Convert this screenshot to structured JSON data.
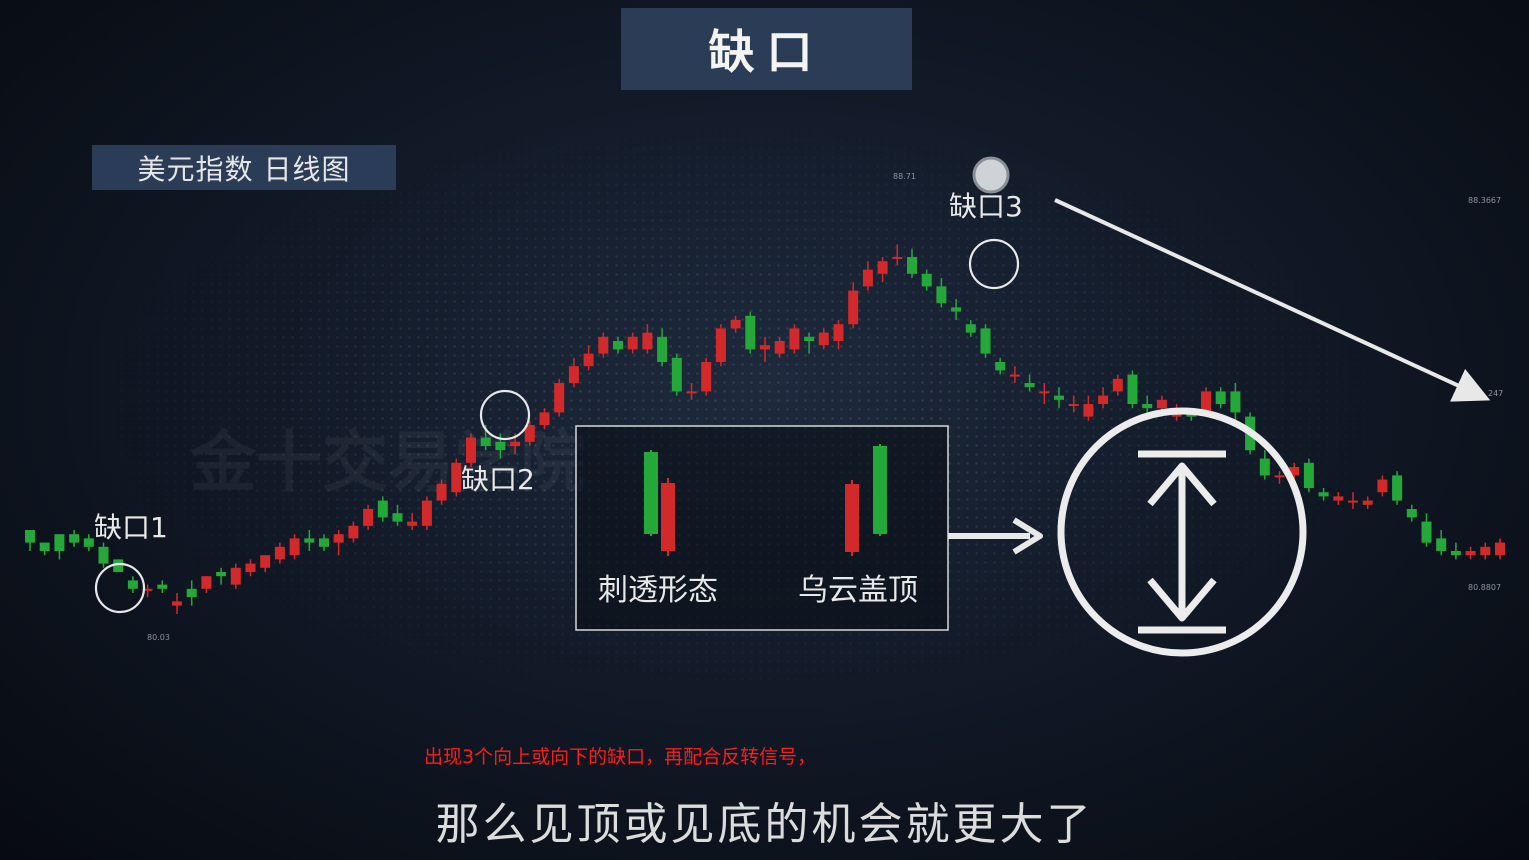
{
  "title": "缺口",
  "subtitle": "美元指数 日线图",
  "gap_labels": [
    "缺口1",
    "缺口2",
    "缺口3"
  ],
  "patterns": {
    "left": "刺透形态",
    "right": "乌云盖顶"
  },
  "price_marks": [
    "88.71",
    "80.03",
    "88.3667",
    "80.8807",
    "247"
  ],
  "caption_red": "出现3个向上或向下的缺口，再配合反转信号，",
  "caption_main": "那么见顶或见底的机会就更大了",
  "colors": {
    "up": "#d22a2a",
    "down": "#25a83a",
    "accent_box": "#2b3c57",
    "caption_red": "#ff1a1a"
  },
  "chart_data": {
    "type": "candlestick",
    "title": "美元指数 日线图",
    "ohlc": [
      [
        81.9,
        81.9,
        81.4,
        81.6
      ],
      [
        81.6,
        81.6,
        81.3,
        81.4
      ],
      [
        81.8,
        81.8,
        81.2,
        81.4
      ],
      [
        81.8,
        81.9,
        81.5,
        81.6
      ],
      [
        81.7,
        81.8,
        81.4,
        81.5
      ],
      [
        81.5,
        81.6,
        81.0,
        81.1
      ],
      [
        81.2,
        81.2,
        80.9,
        80.9
      ],
      [
        80.7,
        80.8,
        80.4,
        80.5
      ],
      [
        80.5,
        80.6,
        80.3,
        80.5
      ],
      [
        80.6,
        80.7,
        80.4,
        80.5
      ],
      [
        80.1,
        80.4,
        79.9,
        80.2
      ],
      [
        80.5,
        80.7,
        80.1,
        80.3
      ],
      [
        80.5,
        80.8,
        80.4,
        80.8
      ],
      [
        80.9,
        81.0,
        80.6,
        80.8
      ],
      [
        80.6,
        81.1,
        80.5,
        81.0
      ],
      [
        80.9,
        81.2,
        80.8,
        81.1
      ],
      [
        81.0,
        81.3,
        80.9,
        81.3
      ],
      [
        81.2,
        81.6,
        81.1,
        81.5
      ],
      [
        81.3,
        81.8,
        81.2,
        81.7
      ],
      [
        81.7,
        81.9,
        81.4,
        81.6
      ],
      [
        81.7,
        81.8,
        81.4,
        81.5
      ],
      [
        81.6,
        81.9,
        81.3,
        81.8
      ],
      [
        81.7,
        82.1,
        81.6,
        82.0
      ],
      [
        82.0,
        82.5,
        81.9,
        82.4
      ],
      [
        82.6,
        82.7,
        82.1,
        82.2
      ],
      [
        82.3,
        82.5,
        82.0,
        82.1
      ],
      [
        82.0,
        82.3,
        81.9,
        82.1
      ],
      [
        82.0,
        82.7,
        81.9,
        82.6
      ],
      [
        82.6,
        83.1,
        82.5,
        83.0
      ],
      [
        82.8,
        83.6,
        82.7,
        83.5
      ],
      [
        83.5,
        84.2,
        83.4,
        84.1
      ],
      [
        84.1,
        84.4,
        83.8,
        83.9
      ],
      [
        84.0,
        84.2,
        83.6,
        83.8
      ],
      [
        83.9,
        84.2,
        83.7,
        84.0
      ],
      [
        84.0,
        84.5,
        83.9,
        84.4
      ],
      [
        84.4,
        84.8,
        84.3,
        84.7
      ],
      [
        84.7,
        85.5,
        84.6,
        85.4
      ],
      [
        85.4,
        86.0,
        85.3,
        85.8
      ],
      [
        85.8,
        86.3,
        85.7,
        86.1
      ],
      [
        86.1,
        86.6,
        86.0,
        86.5
      ],
      [
        86.4,
        86.5,
        86.1,
        86.2
      ],
      [
        86.2,
        86.6,
        86.1,
        86.5
      ],
      [
        86.2,
        86.8,
        86.1,
        86.6
      ],
      [
        86.5,
        86.7,
        85.8,
        85.9
      ],
      [
        86.0,
        86.1,
        85.1,
        85.2
      ],
      [
        85.2,
        85.4,
        85.0,
        85.2
      ],
      [
        85.2,
        86.0,
        85.1,
        85.9
      ],
      [
        85.9,
        86.8,
        85.8,
        86.7
      ],
      [
        86.7,
        87.0,
        86.6,
        86.9
      ],
      [
        87.0,
        87.1,
        86.1,
        86.2
      ],
      [
        86.2,
        86.5,
        85.9,
        86.3
      ],
      [
        86.1,
        86.5,
        86.0,
        86.4
      ],
      [
        86.2,
        86.8,
        86.1,
        86.7
      ],
      [
        86.5,
        86.6,
        86.1,
        86.4
      ],
      [
        86.3,
        86.7,
        86.2,
        86.6
      ],
      [
        86.4,
        86.9,
        86.2,
        86.8
      ],
      [
        86.8,
        87.8,
        86.7,
        87.6
      ],
      [
        87.7,
        88.3,
        87.6,
        88.1
      ],
      [
        88.0,
        88.4,
        87.8,
        88.3
      ],
      [
        88.4,
        88.7,
        88.2,
        88.4
      ],
      [
        88.4,
        88.6,
        87.9,
        88.0
      ],
      [
        88.0,
        88.1,
        87.6,
        87.7
      ],
      [
        87.7,
        87.9,
        87.2,
        87.3
      ],
      [
        87.2,
        87.4,
        86.9,
        87.1
      ],
      [
        86.8,
        86.9,
        86.5,
        86.6
      ],
      [
        86.7,
        86.8,
        86.0,
        86.1
      ],
      [
        85.9,
        86.0,
        85.6,
        85.7
      ],
      [
        85.6,
        85.8,
        85.4,
        85.6
      ],
      [
        85.4,
        85.6,
        85.2,
        85.3
      ],
      [
        85.2,
        85.4,
        84.9,
        85.2
      ],
      [
        85.1,
        85.3,
        84.8,
        85.0
      ],
      [
        84.9,
        85.1,
        84.7,
        84.9
      ],
      [
        84.6,
        85.1,
        84.5,
        84.9
      ],
      [
        84.9,
        85.3,
        84.8,
        85.1
      ],
      [
        85.2,
        85.6,
        85.1,
        85.5
      ],
      [
        85.6,
        85.7,
        84.8,
        84.9
      ],
      [
        84.9,
        85.1,
        84.6,
        84.8
      ],
      [
        84.8,
        85.1,
        84.6,
        85.0
      ],
      [
        84.6,
        84.9,
        84.5,
        84.7
      ],
      [
        84.7,
        84.8,
        84.5,
        84.6
      ],
      [
        84.7,
        85.3,
        84.6,
        85.2
      ],
      [
        85.2,
        85.3,
        84.8,
        84.9
      ],
      [
        85.2,
        85.4,
        84.5,
        84.7
      ],
      [
        84.6,
        84.7,
        83.7,
        83.8
      ],
      [
        83.6,
        83.8,
        83.1,
        83.2
      ],
      [
        83.2,
        83.3,
        83.0,
        83.2
      ],
      [
        83.2,
        83.5,
        83.1,
        83.4
      ],
      [
        83.5,
        83.6,
        82.8,
        82.9
      ],
      [
        82.8,
        82.9,
        82.6,
        82.7
      ],
      [
        82.6,
        82.8,
        82.5,
        82.7
      ],
      [
        82.6,
        82.8,
        82.4,
        82.6
      ],
      [
        82.5,
        82.7,
        82.4,
        82.6
      ],
      [
        82.8,
        83.2,
        82.7,
        83.1
      ],
      [
        83.2,
        83.3,
        82.5,
        82.6
      ],
      [
        82.4,
        82.5,
        82.1,
        82.2
      ],
      [
        82.1,
        82.3,
        81.5,
        81.6
      ],
      [
        81.7,
        81.9,
        81.3,
        81.4
      ],
      [
        81.4,
        81.6,
        81.2,
        81.3
      ],
      [
        81.3,
        81.5,
        81.2,
        81.4
      ],
      [
        81.3,
        81.6,
        81.2,
        81.5
      ],
      [
        81.3,
        81.7,
        81.2,
        81.6
      ]
    ],
    "gaps": [
      {
        "label": "缺口1",
        "index": 5
      },
      {
        "label": "缺口2",
        "index": 32
      },
      {
        "label": "缺口3",
        "index": 62
      }
    ]
  }
}
